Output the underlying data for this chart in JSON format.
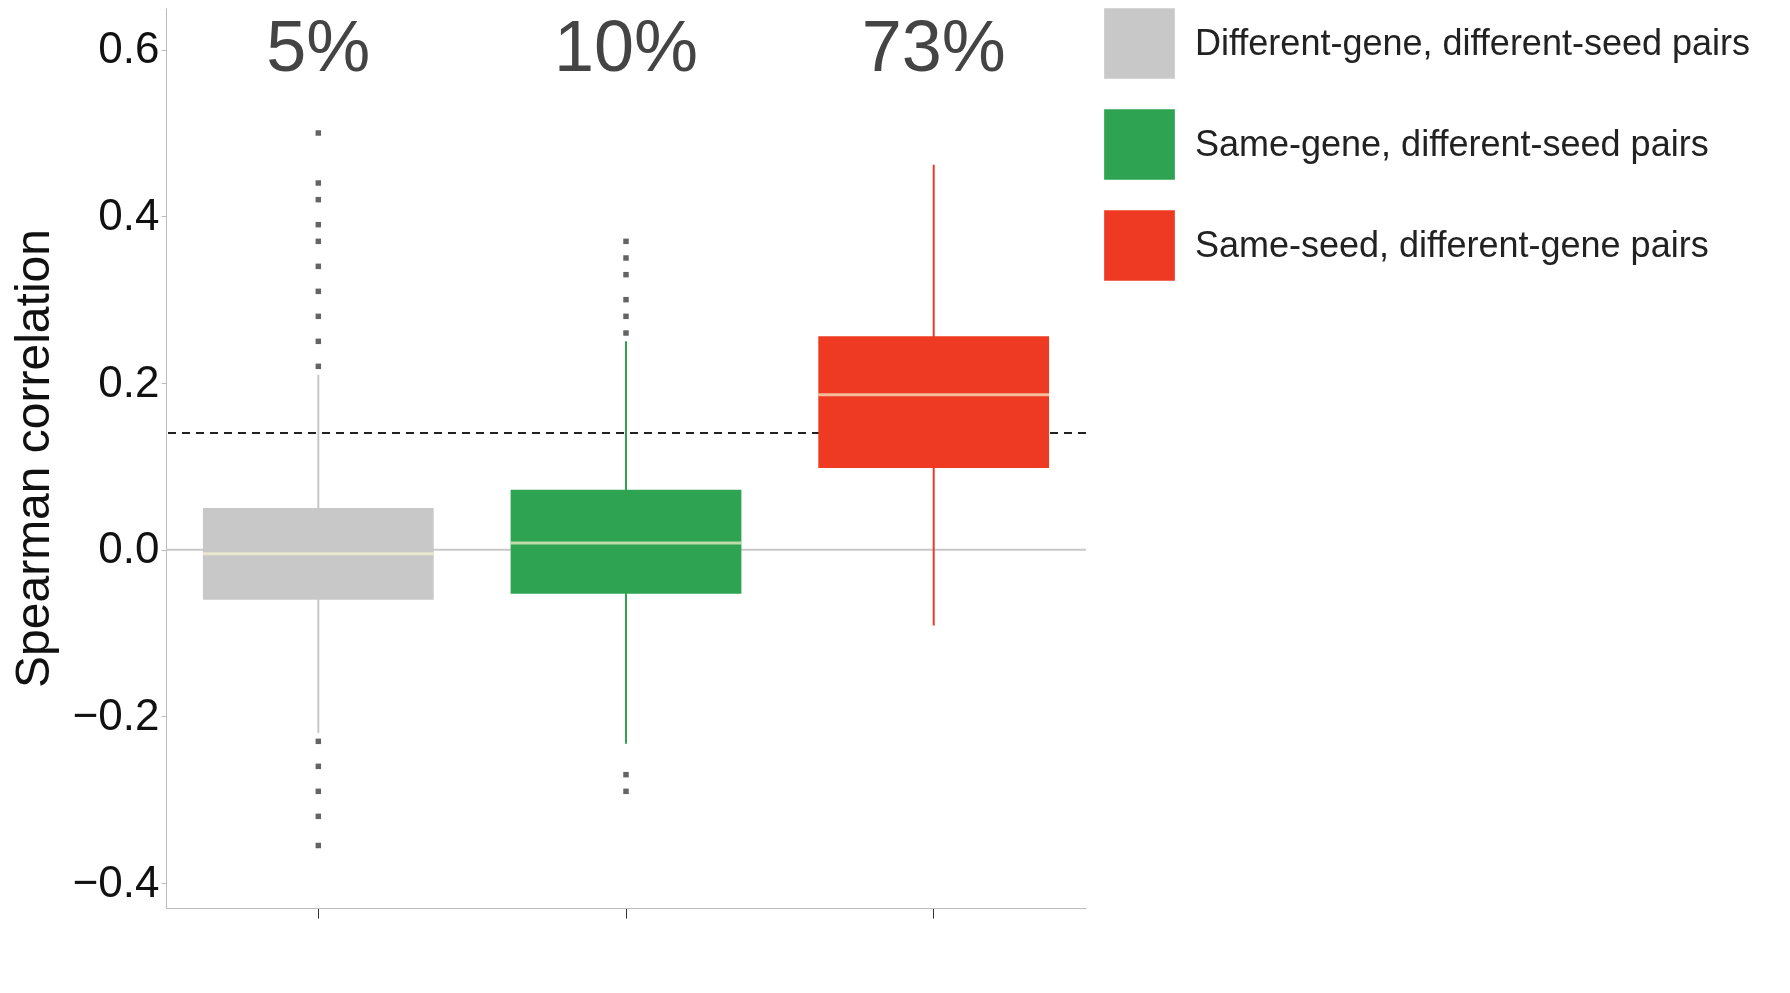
{
  "chart_data": {
    "type": "box",
    "ylabel": "Spearman correlation",
    "categories": [
      null,
      null,
      null
    ],
    "series": [
      {
        "name": "Different-gene,\ndifferent-seed pairs",
        "color": "#c8c8c8",
        "boxes": [
          {
            "low": -0.22,
            "q1": -0.06,
            "median": -0.005,
            "q3": 0.05,
            "high": 0.21,
            "outliers": [
              0.22,
              0.25,
              0.28,
              0.31,
              0.34,
              0.37,
              0.39,
              0.42,
              0.44,
              0.5,
              -0.23,
              -0.26,
              -0.29,
              -0.32,
              -0.355
            ]
          },
          null,
          null
        ]
      },
      {
        "name": "Same-gene,\ndifferent-seed pairs",
        "color": "#2ea352",
        "boxes": [
          null,
          {
            "low": -0.233,
            "q1": -0.053,
            "median": 0.008,
            "q3": 0.072,
            "high": 0.25,
            "outliers": [
              0.26,
              0.28,
              0.3,
              0.33,
              0.35,
              0.37,
              -0.27,
              -0.29
            ]
          },
          null
        ]
      },
      {
        "name": "Same-seed,\ndifferent-gene pairs",
        "color": "#ee3a22",
        "boxes": [
          null,
          null,
          {
            "low": -0.091,
            "q1": 0.098,
            "median": 0.186,
            "q3": 0.256,
            "high": 0.462
          }
        ]
      }
    ],
    "annotations": [
      "5%",
      "10%",
      "73%"
    ],
    "ylim": [
      -0.43,
      0.65
    ],
    "yticks": [
      {
        "value": -0.4,
        "label": "−0.4"
      },
      {
        "value": -0.2,
        "label": "−0.2"
      },
      {
        "value": 0,
        "label": "0.0"
      },
      {
        "value": 0.2,
        "label": "0.2"
      },
      {
        "value": 0.4,
        "label": "0.4"
      },
      {
        "value": 0.6,
        "label": "0.6"
      }
    ],
    "ref_lines": [
      {
        "axis": "y",
        "value": 0.14,
        "color": "#222222",
        "line_style": "dashed"
      },
      {
        "axis": "y",
        "value": 0,
        "color": "#c8c8c8",
        "line_style": "solid"
      }
    ],
    "legend": "right"
  }
}
